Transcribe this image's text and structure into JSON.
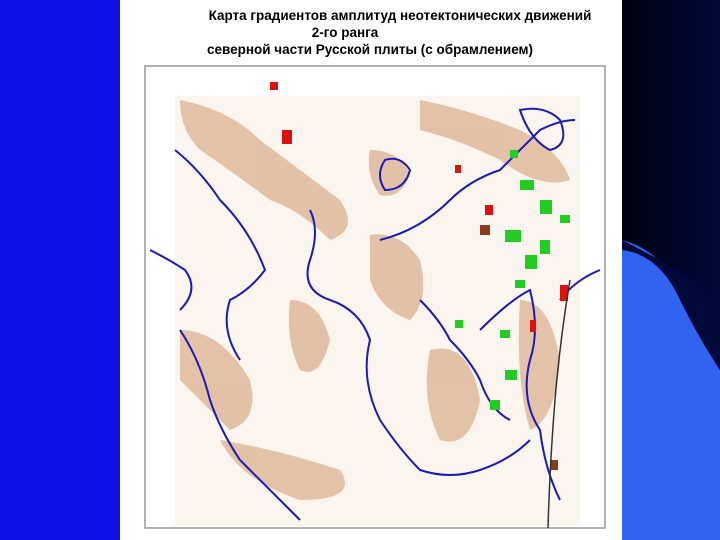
{
  "slide": {
    "title_lines": [
      "Карта градиентов амплитуд неотектонических движений",
      "2-го ранга",
      "северной части Русской плиты (с обрамлением)"
    ]
  }
}
